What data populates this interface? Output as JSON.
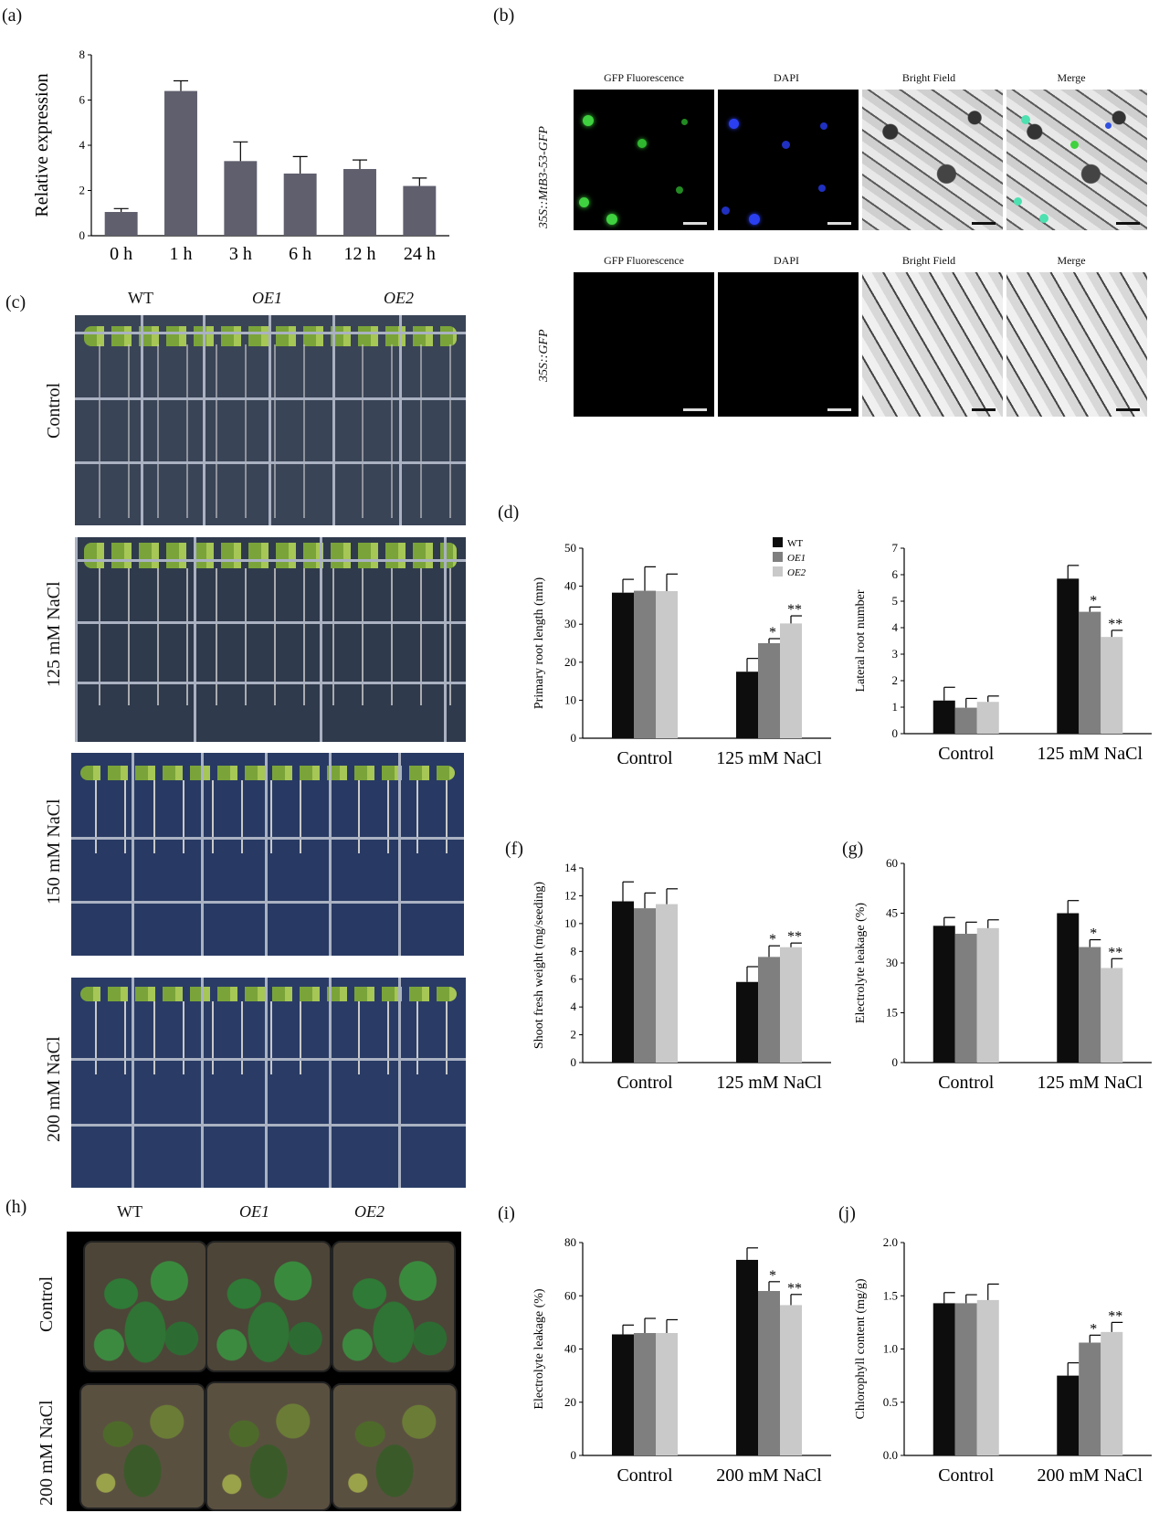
{
  "panels": {
    "a": "(a)",
    "b": "(b)",
    "c": "(c)",
    "d": "(d)",
    "f": "(f)",
    "g": "(g)",
    "h": "(h)",
    "i": "(i)",
    "j": "(j)"
  },
  "microscopy": {
    "columns": [
      "GFP Fluorescence",
      "DAPI",
      "Bright Field",
      "Merge"
    ],
    "rows": [
      "35S::MtB3-53-GFP",
      "35S::GFP"
    ]
  },
  "plates": {
    "genotypes": [
      "WT",
      "OE1",
      "OE2"
    ],
    "conditions": [
      "Control",
      "125 mM NaCl",
      "150 mM NaCl",
      "200 mM NaCl"
    ]
  },
  "pots": {
    "genotypes": [
      "WT",
      "OE1",
      "OE2"
    ],
    "conditions": [
      "Control",
      "200 mM NaCl"
    ]
  },
  "colors": {
    "wt": "#0d0d0d",
    "oe1": "#7f7f7f",
    "oe2": "#c9c9c9",
    "single": "#5f5f6e"
  },
  "chart_data": [
    {
      "id": "a",
      "type": "bar",
      "categories": [
        "0 h",
        "1 h",
        "3 h",
        "6 h",
        "12 h",
        "24 h"
      ],
      "values": [
        1.05,
        6.4,
        3.3,
        2.75,
        2.95,
        2.2
      ],
      "errors": [
        0.15,
        0.45,
        0.85,
        0.75,
        0.4,
        0.35
      ],
      "ylabel": "Relative expression",
      "ylim": [
        0,
        8
      ],
      "yticks": [
        "0",
        "2",
        "4",
        "6",
        "8"
      ]
    },
    {
      "id": "d",
      "type": "bar",
      "categories": [
        "Control",
        "125 mM NaCl"
      ],
      "series": [
        {
          "name": "WT",
          "values": [
            38.3,
            17.5
          ],
          "errors": [
            3.5,
            3.5
          ],
          "sig": [
            "",
            ""
          ]
        },
        {
          "name": "OE1",
          "values": [
            38.8,
            25.0
          ],
          "errors": [
            6.3,
            1.2
          ],
          "sig": [
            "",
            "*"
          ]
        },
        {
          "name": "OE2",
          "values": [
            38.7,
            30.2
          ],
          "errors": [
            4.5,
            2.0
          ],
          "sig": [
            "",
            "**"
          ]
        }
      ],
      "ylabel": "Primary root length (mm)",
      "ylim": [
        0,
        50
      ],
      "yticks": [
        "0",
        "10",
        "20",
        "30",
        "40",
        "50"
      ]
    },
    {
      "id": "e",
      "type": "bar",
      "categories": [
        "Control",
        "125 mM NaCl"
      ],
      "series": [
        {
          "name": "WT",
          "values": [
            1.25,
            5.85
          ],
          "errors": [
            0.5,
            0.5
          ],
          "sig": [
            "",
            ""
          ]
        },
        {
          "name": "OE1",
          "values": [
            0.98,
            4.6
          ],
          "errors": [
            0.35,
            0.18
          ],
          "sig": [
            "",
            "*"
          ]
        },
        {
          "name": "OE2",
          "values": [
            1.2,
            3.65
          ],
          "errors": [
            0.22,
            0.25
          ],
          "sig": [
            "",
            "**"
          ]
        }
      ],
      "ylabel": "Lateral root number",
      "ylim": [
        0,
        7
      ],
      "yticks": [
        "0",
        "1",
        "2",
        "3",
        "4",
        "5",
        "6",
        "7"
      ]
    },
    {
      "id": "f",
      "type": "bar",
      "categories": [
        "Control",
        "125 mM NaCl"
      ],
      "series": [
        {
          "name": "WT",
          "values": [
            11.6,
            5.8
          ],
          "errors": [
            1.4,
            1.1
          ],
          "sig": [
            "",
            ""
          ]
        },
        {
          "name": "OE1",
          "values": [
            11.1,
            7.6
          ],
          "errors": [
            1.1,
            0.8
          ],
          "sig": [
            "",
            "*"
          ]
        },
        {
          "name": "OE2",
          "values": [
            11.4,
            8.3
          ],
          "errors": [
            1.1,
            0.3
          ],
          "sig": [
            "",
            "**"
          ]
        }
      ],
      "ylabel": "Shoot fresh weight (mg/seeding)",
      "ylim": [
        0,
        14
      ],
      "yticks": [
        "0",
        "2",
        "4",
        "6",
        "8",
        "10",
        "12",
        "14"
      ]
    },
    {
      "id": "g",
      "type": "bar",
      "categories": [
        "Control",
        "125 mM NaCl"
      ],
      "series": [
        {
          "name": "WT",
          "values": [
            41.2,
            45.0
          ],
          "errors": [
            2.5,
            3.8
          ],
          "sig": [
            "",
            ""
          ]
        },
        {
          "name": "OE1",
          "values": [
            38.8,
            34.8
          ],
          "errors": [
            3.5,
            2.2
          ],
          "sig": [
            "",
            "*"
          ]
        },
        {
          "name": "OE2",
          "values": [
            40.5,
            28.5
          ],
          "errors": [
            2.5,
            2.8
          ],
          "sig": [
            "",
            "**"
          ]
        }
      ],
      "ylabel": "Electrolyte leakage (%)",
      "ylim": [
        0,
        60
      ],
      "yticks": [
        "0",
        "15",
        "30",
        "45",
        "60"
      ]
    },
    {
      "id": "i",
      "type": "bar",
      "categories": [
        "Control",
        "200 mM NaCl"
      ],
      "series": [
        {
          "name": "WT",
          "values": [
            45.5,
            73.5
          ],
          "errors": [
            3.5,
            4.5
          ],
          "sig": [
            "",
            ""
          ]
        },
        {
          "name": "OE1",
          "values": [
            46.0,
            61.8
          ],
          "errors": [
            5.5,
            3.5
          ],
          "sig": [
            "",
            "*"
          ]
        },
        {
          "name": "OE2",
          "values": [
            46.0,
            56.5
          ],
          "errors": [
            5.0,
            4.0
          ],
          "sig": [
            "",
            "**"
          ]
        }
      ],
      "ylabel": "Electrolyte leakage (%)",
      "ylim": [
        0,
        80
      ],
      "yticks": [
        "0",
        "20",
        "40",
        "60",
        "80"
      ]
    },
    {
      "id": "j",
      "type": "bar",
      "categories": [
        "Control",
        "200 mM NaCl"
      ],
      "series": [
        {
          "name": "WT",
          "values": [
            1.43,
            0.75
          ],
          "errors": [
            0.1,
            0.12
          ],
          "sig": [
            "",
            ""
          ]
        },
        {
          "name": "OE1",
          "values": [
            1.43,
            1.06
          ],
          "errors": [
            0.08,
            0.07
          ],
          "sig": [
            "",
            "*"
          ]
        },
        {
          "name": "OE2",
          "values": [
            1.46,
            1.16
          ],
          "errors": [
            0.15,
            0.09
          ],
          "sig": [
            "",
            "**"
          ]
        }
      ],
      "ylabel": "Chlorophyll content (mg/g)",
      "ylim": [
        0,
        2.0
      ],
      "yticks": [
        "0.0",
        "0.5",
        "1.0",
        "1.5",
        "2.0"
      ]
    }
  ]
}
